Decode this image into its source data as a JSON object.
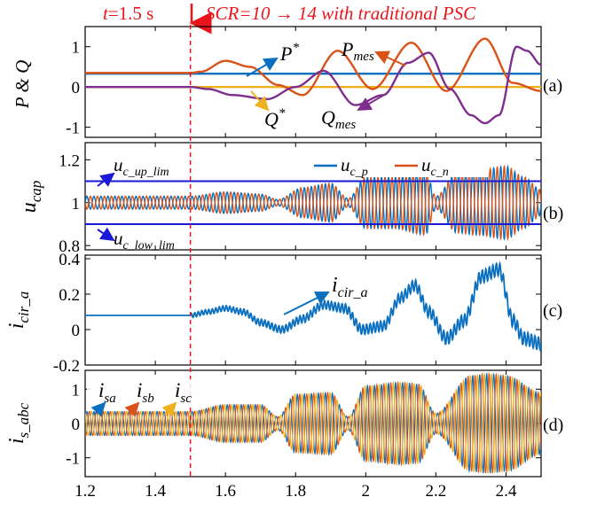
{
  "header": {
    "time_label_italic": "t",
    "time_label_rest": "=1.5 s",
    "scenario": "SCR=10 → 14 with traditional PSC"
  },
  "colors": {
    "blue": "#0a6fbf",
    "orange": "#d95319",
    "yellow": "#edb120",
    "purple": "#7e2f8e",
    "limit": "#1a1ad6",
    "red": "#e8151a"
  },
  "x_axis": {
    "range": [
      1.2,
      2.5
    ],
    "ticks": [
      1.2,
      1.4,
      1.6,
      1.8,
      2,
      2.2,
      2.4
    ],
    "tick_labels": [
      "1.2",
      "1.4",
      "1.6",
      "1.8",
      "2",
      "2.2",
      "2.4"
    ]
  },
  "event_time": 1.5,
  "chart_data": [
    {
      "type": "line",
      "panel_label": "(a)",
      "ylabel": "P & Q",
      "ylim": [
        -1.25,
        1.5
      ],
      "yticks": [
        -1,
        0,
        1
      ],
      "ytick_labels": [
        "-1",
        "0",
        "1"
      ],
      "series": [
        {
          "name": "P*",
          "color": "#0a6fbf",
          "x": [
            1.2,
            2.5
          ],
          "y": [
            0.33,
            0.33
          ]
        },
        {
          "name": "Q*",
          "color": "#edb120",
          "x": [
            1.2,
            2.5
          ],
          "y": [
            0.0,
            0.0
          ]
        },
        {
          "name": "P_mes",
          "color": "#d95319",
          "x": [
            1.2,
            1.5,
            1.53,
            1.6,
            1.67,
            1.75,
            1.82,
            1.92,
            2.02,
            2.13,
            2.23,
            2.34,
            2.42,
            2.5
          ],
          "y": [
            0.35,
            0.35,
            0.38,
            0.65,
            0.5,
            0.05,
            -0.2,
            0.9,
            -0.05,
            1.1,
            -0.1,
            1.2,
            0.1,
            -0.1
          ]
        },
        {
          "name": "Q_mes",
          "color": "#7e2f8e",
          "x": [
            1.2,
            1.5,
            1.55,
            1.62,
            1.72,
            1.8,
            1.88,
            1.97,
            2.05,
            2.12,
            2.18,
            2.24,
            2.3,
            2.34,
            2.38,
            2.43,
            2.46,
            2.5
          ],
          "y": [
            0.0,
            0.0,
            -0.05,
            -0.2,
            -0.3,
            0.0,
            0.4,
            -0.45,
            -0.2,
            0.6,
            0.85,
            -0.05,
            -0.7,
            -0.9,
            -0.7,
            1.0,
            0.9,
            0.55
          ]
        }
      ],
      "annotations": [
        {
          "base": "P",
          "sup": "*"
        },
        {
          "base": "Q",
          "sup": "*"
        },
        {
          "base": "P",
          "sub": "mes"
        },
        {
          "base": "Q",
          "sub": "mes"
        }
      ]
    },
    {
      "type": "line",
      "panel_label": "(b)",
      "ylabel": {
        "base": "u",
        "sub": "cap"
      },
      "ylim": [
        0.78,
        1.28
      ],
      "yticks": [
        0.8,
        1,
        1.2
      ],
      "ytick_labels": [
        "0.8",
        "1",
        "1.2"
      ],
      "limits": [
        1.1,
        0.9
      ],
      "envelope": {
        "x": [
          1.2,
          1.5,
          1.6,
          1.7,
          1.75,
          1.82,
          1.9,
          1.95,
          2.0,
          2.08,
          2.17,
          2.2,
          2.26,
          2.32,
          2.4,
          2.45,
          2.5
        ],
        "amp": [
          0.03,
          0.03,
          0.05,
          0.04,
          0.015,
          0.07,
          0.09,
          0.02,
          0.12,
          0.12,
          0.15,
          0.03,
          0.14,
          0.15,
          0.17,
          0.12,
          0.06
        ]
      },
      "oscillation_frequency_hz": 50,
      "series": [
        {
          "name": "u_c_p",
          "color": "#0a6fbf"
        },
        {
          "name": "u_c_n",
          "color": "#d95319"
        }
      ],
      "legend": [
        {
          "base": "u",
          "sub": "c_p"
        },
        {
          "base": "u",
          "sub": "c_n"
        }
      ],
      "annotations": [
        {
          "base": "u",
          "sub": "c_up_lim"
        },
        {
          "base": "u",
          "sub": "c_low_lim"
        }
      ]
    },
    {
      "type": "line",
      "panel_label": "(c)",
      "ylabel": {
        "base": "i",
        "sub": "cir_a"
      },
      "ylim": [
        -0.2,
        0.42
      ],
      "yticks": [
        -0.2,
        0,
        0.2,
        0.4
      ],
      "ytick_labels": [
        "-0.2",
        "0",
        "0.2",
        "0.4"
      ],
      "series": [
        {
          "name": "i_cir_a",
          "color": "#0a6fbf",
          "x": [
            1.2,
            1.5,
            1.55,
            1.6,
            1.65,
            1.7,
            1.76,
            1.82,
            1.88,
            1.94,
            1.99,
            2.05,
            2.1,
            2.14,
            2.18,
            2.23,
            2.28,
            2.33,
            2.38,
            2.42,
            2.45,
            2.5
          ],
          "y": [
            0.08,
            0.08,
            0.1,
            0.12,
            0.1,
            0.04,
            0.0,
            0.06,
            0.14,
            0.12,
            0.0,
            0.02,
            0.18,
            0.25,
            0.1,
            -0.05,
            0.05,
            0.3,
            0.34,
            0.05,
            -0.05,
            -0.08
          ],
          "ripple_amplitude": 0.012
        }
      ],
      "annotations": [
        {
          "base": "i",
          "sub": "cir_a"
        }
      ]
    },
    {
      "type": "line",
      "panel_label": "(d)",
      "ylabel": {
        "base": "i",
        "sub": "s_abc"
      },
      "ylim": [
        -1.55,
        1.55
      ],
      "yticks": [
        -1,
        0,
        1
      ],
      "ytick_labels": [
        "-1",
        "0",
        "1"
      ],
      "envelope": {
        "x": [
          1.2,
          1.5,
          1.6,
          1.7,
          1.75,
          1.8,
          1.9,
          1.95,
          2.0,
          2.1,
          2.15,
          2.2,
          2.3,
          2.35,
          2.4,
          2.5
        ],
        "amp": [
          0.35,
          0.35,
          0.55,
          0.55,
          0.2,
          0.85,
          0.9,
          0.2,
          1.1,
          1.2,
          1.15,
          0.3,
          1.4,
          1.45,
          1.4,
          0.9
        ]
      },
      "oscillation_frequency_hz": 50,
      "series": [
        {
          "name": "i_sa",
          "color": "#0a6fbf",
          "phase_deg": 0
        },
        {
          "name": "i_sb",
          "color": "#d95319",
          "phase_deg": -120
        },
        {
          "name": "i_sc",
          "color": "#edb120",
          "phase_deg": 120
        }
      ],
      "annotations": [
        {
          "base": "i",
          "sub": "sa"
        },
        {
          "base": "i",
          "sub": "sb"
        },
        {
          "base": "i",
          "sub": "sc"
        }
      ]
    }
  ]
}
